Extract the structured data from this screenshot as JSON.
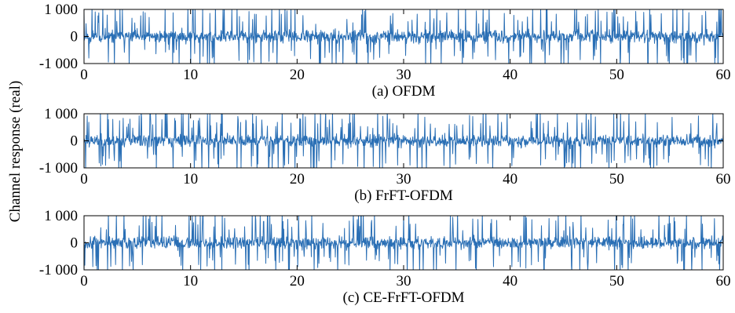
{
  "figure": {
    "ylabel": "Channel response (real)",
    "line_color": "#2a6fb5"
  },
  "chart_data": [
    {
      "type": "line",
      "caption": "(a) OFDM",
      "xlim": [
        0,
        60
      ],
      "ylim": [
        -1000,
        1000
      ],
      "xticks": [
        0,
        10,
        20,
        30,
        40,
        50,
        60
      ],
      "yticks": [
        -1000,
        0,
        1000
      ],
      "ytick_labels": [
        "-1 000",
        "0",
        "1 000"
      ],
      "series": [
        {
          "description": "dense noise-like signal over x 0–60; most samples within about ±300, frequent spikes clipped at ±1000",
          "x_range": [
            0,
            60
          ],
          "typical_amplitude": 300,
          "peak_amplitude": 1000,
          "seed": 11
        }
      ]
    },
    {
      "type": "line",
      "caption": "(b) FrFT-OFDM",
      "xlim": [
        0,
        60
      ],
      "ylim": [
        -1000,
        1000
      ],
      "xticks": [
        0,
        10,
        20,
        30,
        40,
        50,
        60
      ],
      "yticks": [
        -1000,
        0,
        1000
      ],
      "ytick_labels": [
        "-1 000",
        "0",
        "1 000"
      ],
      "series": [
        {
          "description": "dense noise-like signal over x 0–60; most samples within about ±300, frequent spikes clipped at ±1000",
          "x_range": [
            0,
            60
          ],
          "typical_amplitude": 300,
          "peak_amplitude": 1000,
          "seed": 23
        }
      ]
    },
    {
      "type": "line",
      "caption": "(c) CE-FrFT-OFDM",
      "xlim": [
        0,
        60
      ],
      "ylim": [
        -1000,
        1000
      ],
      "xticks": [
        0,
        10,
        20,
        30,
        40,
        50,
        60
      ],
      "yticks": [
        -1000,
        0,
        1000
      ],
      "ytick_labels": [
        "-1 000",
        "0",
        "1 000"
      ],
      "series": [
        {
          "description": "dense noise-like signal over x 0–60; most samples within about ±300, frequent spikes clipped at ±1000",
          "x_range": [
            0,
            60
          ],
          "typical_amplitude": 300,
          "peak_amplitude": 1000,
          "seed": 37
        }
      ]
    }
  ]
}
